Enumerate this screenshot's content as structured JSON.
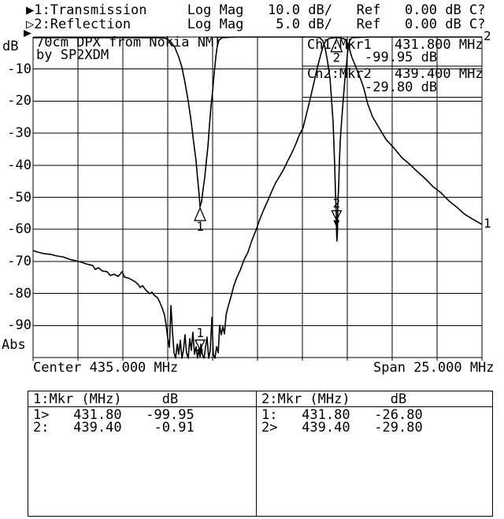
{
  "header": {
    "line1": "▶1:Transmission     Log Mag   10.0 dB/   Ref   0.00 dB C?",
    "line2": "▷2:Reflection       Log Mag    5.0 dB/   Ref   0.00 dB C?"
  },
  "title": {
    "line1": "70cm DPX from Nokia NMT",
    "line2": "by SP2XDM"
  },
  "readout": {
    "ch1_label": "Ch1:Mkr1",
    "ch1_freq": "431.800 MHz",
    "ch1_level": "-99.95 dB",
    "ch2_label": "Ch2:Mkr2",
    "ch2_freq": "439.400 MHz",
    "ch2_level": "-29.80 dB"
  },
  "axis": {
    "unit_top": "dB",
    "unit_bottom": "Abs",
    "y_labels": [
      "-10",
      "-20",
      "-30",
      "-40",
      "-50",
      "-60",
      "-70",
      "-80",
      "-90"
    ],
    "center_label": "Center 435.000 MHz",
    "span_label": "Span 25.000 MHz"
  },
  "marker_table": {
    "left": {
      "header": "1:Mkr (MHz)     dB",
      "rows": [
        "1>   431.80   -99.95",
        "2:   439.40    -0.91"
      ]
    },
    "right": {
      "header": "2:Mkr (MHz)     dB",
      "rows": [
        "1:   431.80   -26.80",
        "2>   439.40   -29.80"
      ]
    }
  },
  "colors": {
    "ink": "#000000",
    "paper": "#ffffff"
  },
  "chart_data": {
    "type": "line",
    "title": "70cm DPX from Nokia NMT by SP2XDM",
    "grid": true,
    "x_axis": {
      "center_mhz": 435.0,
      "span_mhz": 25.0,
      "min_mhz": 422.5,
      "max_mhz": 447.5,
      "divisions": 10
    },
    "series": [
      {
        "name": "1: Transmission",
        "format": "Log Mag",
        "scale_db_per_div": 10.0,
        "ref_db": 0.0,
        "y_range": [
          -100,
          0
        ],
        "end_label": "1",
        "points": [
          [
            422.5,
            -66.6
          ],
          [
            422.76,
            -67.1
          ],
          [
            423.11,
            -67.6
          ],
          [
            423.46,
            -67.8
          ],
          [
            423.82,
            -68.3
          ],
          [
            424.17,
            -68.6
          ],
          [
            424.52,
            -69.3
          ],
          [
            424.87,
            -69.8
          ],
          [
            425.22,
            -70.3
          ],
          [
            425.48,
            -70.8
          ],
          [
            425.83,
            -71.3
          ],
          [
            425.96,
            -72.5
          ],
          [
            426.14,
            -72.0
          ],
          [
            426.36,
            -73.0
          ],
          [
            426.62,
            -73.2
          ],
          [
            426.8,
            -74.4
          ],
          [
            427.02,
            -74.0
          ],
          [
            427.24,
            -74.7
          ],
          [
            427.46,
            -73.2
          ],
          [
            427.59,
            -74.9
          ],
          [
            427.81,
            -75.2
          ],
          [
            427.98,
            -75.7
          ],
          [
            428.2,
            -76.4
          ],
          [
            428.38,
            -77.4
          ],
          [
            428.46,
            -78.1
          ],
          [
            428.6,
            -77.6
          ],
          [
            428.77,
            -78.9
          ],
          [
            428.99,
            -80.1
          ],
          [
            429.12,
            -79.6
          ],
          [
            429.25,
            -80.6
          ],
          [
            429.43,
            -81.3
          ],
          [
            429.56,
            -82.8
          ],
          [
            429.69,
            -84.5
          ],
          [
            429.82,
            -86.7
          ],
          [
            429.91,
            -89.7
          ],
          [
            430.0,
            -94.1
          ],
          [
            430.09,
            -96.8
          ],
          [
            430.18,
            -83.8
          ],
          [
            430.26,
            -91.6
          ],
          [
            430.35,
            -98.5
          ],
          [
            430.44,
            -100.2
          ],
          [
            430.53,
            -95.8
          ],
          [
            430.61,
            -99.0
          ],
          [
            430.7,
            -94.6
          ],
          [
            430.79,
            -100.2
          ],
          [
            430.88,
            -97.5
          ],
          [
            430.96,
            -92.9
          ],
          [
            431.05,
            -98.5
          ],
          [
            431.14,
            -100.2
          ],
          [
            431.23,
            -94.1
          ],
          [
            431.31,
            -97.8
          ],
          [
            431.4,
            -92.1
          ],
          [
            431.49,
            -99.0
          ],
          [
            431.58,
            -96.6
          ],
          [
            431.66,
            -100.2
          ],
          [
            431.75,
            -97.1
          ],
          [
            431.8,
            -99.9
          ],
          [
            431.84,
            -95.8
          ],
          [
            431.93,
            -99.0
          ],
          [
            432.02,
            -100.2
          ],
          [
            432.11,
            -96.6
          ],
          [
            432.19,
            -93.6
          ],
          [
            432.28,
            -100.2
          ],
          [
            432.37,
            -97.8
          ],
          [
            432.46,
            -87.5
          ],
          [
            432.54,
            -99.0
          ],
          [
            432.63,
            -100.2
          ],
          [
            432.72,
            -96.6
          ],
          [
            432.81,
            -98.5
          ],
          [
            432.89,
            -89.9
          ],
          [
            432.98,
            -92.9
          ],
          [
            433.07,
            -90.4
          ],
          [
            433.16,
            -92.6
          ],
          [
            433.25,
            -86.7
          ],
          [
            433.33,
            -84.8
          ],
          [
            433.51,
            -81.3
          ],
          [
            433.68,
            -77.6
          ],
          [
            433.86,
            -74.9
          ],
          [
            434.04,
            -72.7
          ],
          [
            434.25,
            -69.5
          ],
          [
            434.47,
            -67.1
          ],
          [
            434.69,
            -63.4
          ],
          [
            434.91,
            -60.4
          ],
          [
            435.13,
            -56.8
          ],
          [
            435.35,
            -53.8
          ],
          [
            435.57,
            -51.1
          ],
          [
            435.79,
            -48.2
          ],
          [
            436.01,
            -45.5
          ],
          [
            436.23,
            -43.5
          ],
          [
            436.45,
            -41.3
          ],
          [
            436.67,
            -38.8
          ],
          [
            436.89,
            -36.4
          ],
          [
            437.11,
            -33.7
          ],
          [
            437.32,
            -30.7
          ],
          [
            437.54,
            -28.3
          ],
          [
            437.76,
            -23.3
          ],
          [
            437.94,
            -19.2
          ],
          [
            438.11,
            -15.0
          ],
          [
            438.29,
            -10.6
          ],
          [
            438.42,
            -7.6
          ],
          [
            438.55,
            -4.9
          ],
          [
            438.68,
            -2.5
          ],
          [
            438.82,
            -1.0
          ],
          [
            438.99,
            -0.5
          ],
          [
            439.25,
            -0.2
          ],
          [
            439.52,
            -0.2
          ],
          [
            439.78,
            -0.5
          ],
          [
            439.96,
            -1.0
          ],
          [
            440.09,
            -3.2
          ],
          [
            440.26,
            -6.4
          ],
          [
            440.44,
            -8.8
          ],
          [
            440.61,
            -11.3
          ],
          [
            440.79,
            -13.8
          ],
          [
            440.92,
            -16.0
          ],
          [
            441.14,
            -20.9
          ],
          [
            441.4,
            -24.8
          ],
          [
            441.71,
            -27.8
          ],
          [
            442.15,
            -31.9
          ],
          [
            442.59,
            -34.6
          ],
          [
            443.03,
            -37.6
          ],
          [
            443.46,
            -39.6
          ],
          [
            443.9,
            -42.0
          ],
          [
            444.34,
            -44.2
          ],
          [
            444.78,
            -46.7
          ],
          [
            445.22,
            -48.6
          ],
          [
            445.66,
            -51.1
          ],
          [
            446.1,
            -53.1
          ],
          [
            446.54,
            -55.3
          ],
          [
            446.98,
            -56.8
          ],
          [
            447.5,
            -58.5
          ]
        ]
      },
      {
        "name": "2: Reflection",
        "format": "Log Mag",
        "scale_db_per_div": 5.0,
        "ref_db": 0.0,
        "y_range": [
          -50,
          0
        ],
        "end_label": "2",
        "points": [
          [
            422.5,
            -0.1
          ],
          [
            425.92,
            -0.1
          ],
          [
            428.55,
            -0.1
          ],
          [
            429.43,
            -0.1
          ],
          [
            429.87,
            -0.2
          ],
          [
            430.13,
            -0.6
          ],
          [
            430.39,
            -1.6
          ],
          [
            430.61,
            -3.1
          ],
          [
            430.79,
            -4.7
          ],
          [
            430.96,
            -7.1
          ],
          [
            431.14,
            -10.0
          ],
          [
            431.31,
            -13.3
          ],
          [
            431.44,
            -16.3
          ],
          [
            431.58,
            -19.4
          ],
          [
            431.66,
            -21.9
          ],
          [
            431.75,
            -24.6
          ],
          [
            431.8,
            -26.5
          ],
          [
            431.89,
            -25.6
          ],
          [
            431.97,
            -23.7
          ],
          [
            432.06,
            -21.9
          ],
          [
            432.15,
            -19.4
          ],
          [
            432.24,
            -17.0
          ],
          [
            432.32,
            -13.9
          ],
          [
            432.41,
            -10.8
          ],
          [
            432.5,
            -8.4
          ],
          [
            432.59,
            -5.5
          ],
          [
            432.68,
            -3.1
          ],
          [
            432.76,
            -1.4
          ],
          [
            432.85,
            -0.5
          ],
          [
            433.03,
            -0.1
          ],
          [
            433.82,
            0.0
          ],
          [
            435.57,
            0.0
          ],
          [
            437.32,
            0.0
          ],
          [
            438.2,
            0.0
          ],
          [
            438.46,
            -0.1
          ],
          [
            438.64,
            -0.6
          ],
          [
            438.77,
            -1.8
          ],
          [
            438.9,
            -3.8
          ],
          [
            439.04,
            -6.5
          ],
          [
            439.12,
            -9.6
          ],
          [
            439.21,
            -13.3
          ],
          [
            439.25,
            -16.3
          ],
          [
            439.3,
            -20.0
          ],
          [
            439.34,
            -24.3
          ],
          [
            439.39,
            -28.0
          ],
          [
            439.4,
            -30.0
          ],
          [
            439.42,
            -31.8
          ],
          [
            439.45,
            -30.5
          ],
          [
            439.47,
            -26.4
          ],
          [
            439.52,
            -23.1
          ],
          [
            439.56,
            -19.4
          ],
          [
            439.61,
            -16.1
          ],
          [
            439.69,
            -12.9
          ],
          [
            439.78,
            -9.6
          ],
          [
            439.87,
            -6.5
          ],
          [
            439.96,
            -4.1
          ],
          [
            440.04,
            -1.8
          ],
          [
            440.13,
            -0.6
          ],
          [
            440.26,
            -0.1
          ],
          [
            441.23,
            0.0
          ],
          [
            443.46,
            0.0
          ],
          [
            445.66,
            0.0
          ],
          [
            447.5,
            0.0
          ]
        ]
      }
    ],
    "markers": [
      {
        "channel": 1,
        "n": "1",
        "freq_mhz": 431.8,
        "db": -99.95,
        "active": true
      },
      {
        "channel": 1,
        "n": "2",
        "freq_mhz": 439.4,
        "db": -0.91,
        "active": false
      },
      {
        "channel": 2,
        "n": "1",
        "freq_mhz": 431.8,
        "db": -26.8,
        "active": false
      },
      {
        "channel": 2,
        "n": "2",
        "freq_mhz": 439.4,
        "db": -29.8,
        "active": true
      }
    ]
  }
}
